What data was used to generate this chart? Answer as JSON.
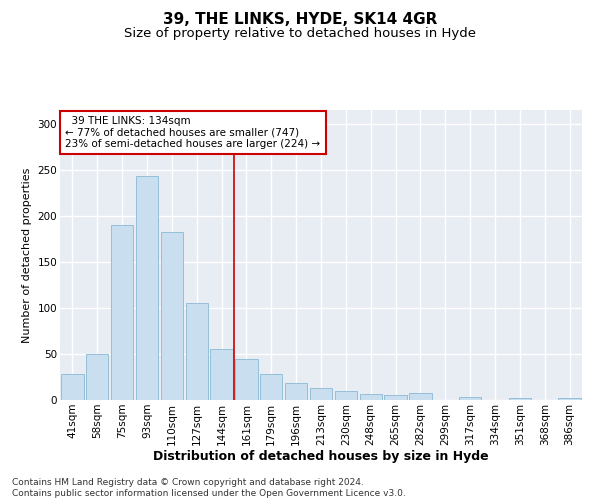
{
  "title1": "39, THE LINKS, HYDE, SK14 4GR",
  "title2": "Size of property relative to detached houses in Hyde",
  "xlabel": "Distribution of detached houses by size in Hyde",
  "ylabel": "Number of detached properties",
  "categories": [
    "41sqm",
    "58sqm",
    "75sqm",
    "93sqm",
    "110sqm",
    "127sqm",
    "144sqm",
    "161sqm",
    "179sqm",
    "196sqm",
    "213sqm",
    "230sqm",
    "248sqm",
    "265sqm",
    "282sqm",
    "299sqm",
    "317sqm",
    "334sqm",
    "351sqm",
    "368sqm",
    "386sqm"
  ],
  "values": [
    28,
    50,
    190,
    243,
    182,
    105,
    55,
    45,
    28,
    18,
    13,
    10,
    7,
    5,
    8,
    0,
    3,
    0,
    2,
    0,
    2
  ],
  "bar_color": "#c9dff0",
  "bar_edge_color": "#8ab8d4",
  "vline_color": "#cc0000",
  "vline_x": 6.5,
  "annotation_text": "  39 THE LINKS: 134sqm\n← 77% of detached houses are smaller (747)\n23% of semi-detached houses are larger (224) →",
  "annotation_box_color": "white",
  "annotation_box_edge_color": "#cc0000",
  "ylim": [
    0,
    315
  ],
  "yticks": [
    0,
    50,
    100,
    150,
    200,
    250,
    300
  ],
  "background_color": "#e8edf4",
  "grid_color": "white",
  "footer_text": "Contains HM Land Registry data © Crown copyright and database right 2024.\nContains public sector information licensed under the Open Government Licence v3.0.",
  "title1_fontsize": 11,
  "title2_fontsize": 9.5,
  "xlabel_fontsize": 9,
  "ylabel_fontsize": 8,
  "tick_fontsize": 7.5,
  "annotation_fontsize": 7.5,
  "footer_fontsize": 6.5
}
